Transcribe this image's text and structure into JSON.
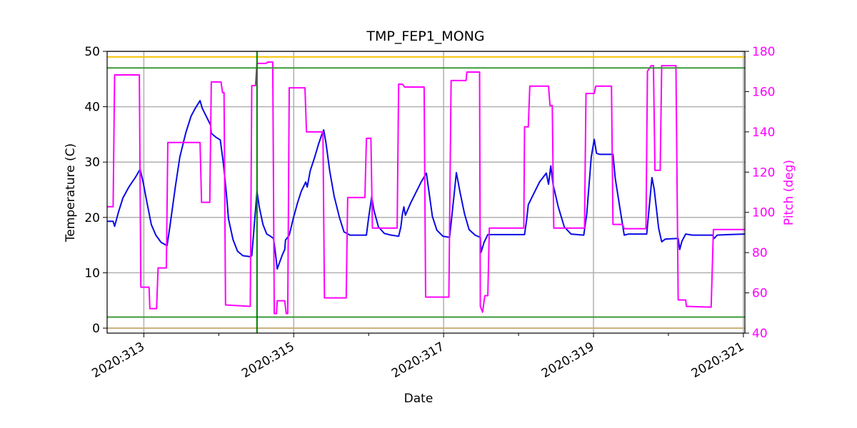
{
  "chart_data": {
    "type": "line",
    "title": "TMP_FEP1_MONG",
    "x_label": "Date",
    "y_label": "Temperature (C)",
    "y2_label": "Pitch (deg)",
    "xlim": [
      312.51,
      321.02
    ],
    "xticks": [
      {
        "value": 313,
        "label": "2020:313"
      },
      {
        "value": 315,
        "label": "2020:315"
      },
      {
        "value": 317,
        "label": "2020:317"
      },
      {
        "value": 319,
        "label": "2020:319"
      },
      {
        "value": 321,
        "label": "2020:321"
      }
    ],
    "xminorticks": [
      314,
      316,
      318,
      320
    ],
    "ylim": [
      -0.9,
      50
    ],
    "yticks": [
      0,
      10,
      20,
      30,
      40,
      50
    ],
    "y2lim": [
      40,
      180
    ],
    "y2ticks": [
      40,
      60,
      80,
      100,
      120,
      140,
      160,
      180
    ],
    "y2_color": "#ff00ff",
    "grid": true,
    "hlines": [
      {
        "value": 49,
        "color": "#f5c400"
      },
      {
        "value": 47,
        "color": "#3a9a3a"
      },
      {
        "value": 2,
        "color": "#3a9a3a"
      },
      {
        "value": 0,
        "color": "#c8b27c"
      }
    ],
    "vlines": [
      {
        "value": 314.51,
        "color": "#008000"
      }
    ],
    "series": [
      {
        "color": "#0a0ae6",
        "x": [
          312.51,
          312.59,
          312.61,
          312.66,
          312.72,
          312.8,
          312.89,
          312.95,
          312.99,
          313.04,
          313.1,
          313.16,
          313.23,
          313.31,
          313.35,
          313.42,
          313.48,
          313.56,
          313.63,
          313.69,
          313.75,
          313.78,
          313.85,
          313.89,
          313.9,
          313.96,
          314.02,
          314.06,
          314.1,
          314.13,
          314.19,
          314.25,
          314.32,
          314.42,
          314.44,
          314.47,
          314.51,
          314.54,
          314.59,
          314.64,
          314.69,
          314.73,
          314.75,
          314.78,
          314.82,
          314.85,
          314.88,
          314.89,
          314.94,
          314.99,
          315.05,
          315.1,
          315.16,
          315.18,
          315.22,
          315.28,
          315.33,
          315.37,
          315.4,
          315.43,
          315.48,
          315.54,
          315.61,
          315.67,
          315.75,
          315.97,
          316.0,
          316.04,
          316.07,
          316.13,
          316.21,
          316.3,
          316.4,
          316.43,
          316.45,
          316.47,
          316.49,
          316.56,
          316.63,
          316.7,
          316.77,
          316.8,
          316.85,
          316.91,
          316.99,
          317.08,
          317.14,
          317.17,
          317.22,
          317.28,
          317.34,
          317.42,
          317.49,
          317.5,
          317.54,
          317.59,
          318.08,
          318.11,
          318.13,
          318.21,
          318.28,
          318.37,
          318.4,
          318.43,
          318.46,
          318.53,
          318.61,
          318.7,
          318.87,
          318.91,
          318.97,
          319.01,
          319.04,
          319.08,
          319.26,
          319.29,
          319.35,
          319.41,
          319.47,
          319.71,
          319.75,
          319.78,
          319.81,
          319.87,
          319.91,
          319.96,
          320.13,
          320.15,
          320.18,
          320.23,
          320.32,
          320.59,
          320.61,
          320.65,
          320.8,
          321.02
        ],
        "values": [
          19.3,
          19.3,
          18.4,
          20.9,
          23.5,
          25.5,
          27.3,
          28.7,
          26.4,
          22.8,
          18.7,
          16.8,
          15.5,
          14.9,
          18.6,
          25.5,
          30.9,
          35.3,
          38.3,
          39.8,
          41.1,
          39.7,
          37.8,
          36.7,
          35.2,
          34.5,
          34.0,
          29.9,
          24.5,
          19.7,
          16.0,
          13.9,
          13.1,
          12.9,
          13.1,
          18.0,
          24.7,
          21.9,
          18.7,
          17.0,
          16.6,
          16.2,
          14.2,
          10.7,
          12.2,
          13.3,
          14.2,
          15.9,
          16.8,
          19.6,
          22.6,
          24.7,
          26.4,
          25.5,
          28.4,
          30.9,
          33.2,
          34.8,
          35.8,
          33.5,
          28.4,
          23.8,
          20.0,
          17.4,
          16.8,
          16.8,
          20.0,
          23.7,
          21.3,
          18.3,
          17.1,
          16.8,
          16.6,
          18.3,
          20.6,
          21.9,
          20.4,
          22.6,
          24.5,
          26.4,
          28.0,
          25.1,
          20.2,
          17.7,
          16.6,
          16.4,
          24.1,
          28.1,
          24.5,
          20.6,
          17.8,
          16.8,
          16.4,
          13.7,
          15.5,
          16.9,
          16.9,
          19.8,
          22.3,
          24.5,
          26.4,
          28.0,
          26.0,
          29.3,
          26.0,
          21.9,
          18.3,
          17.0,
          16.8,
          20.6,
          30.9,
          34.1,
          31.6,
          31.4,
          31.4,
          27.1,
          21.9,
          16.8,
          17.0,
          17.0,
          22.8,
          27.2,
          25.1,
          18.0,
          15.6,
          16.1,
          16.2,
          14.2,
          15.7,
          17.0,
          16.8,
          16.8,
          16.2,
          16.8,
          16.9,
          17.0
        ]
      },
      {
        "color": "#ff00ff",
        "axis": "y2",
        "x": [
          312.51,
          312.59,
          312.61,
          312.94,
          312.96,
          313.07,
          313.08,
          313.17,
          313.19,
          313.3,
          313.32,
          313.75,
          313.77,
          313.88,
          313.9,
          314.03,
          314.05,
          314.07,
          314.09,
          314.42,
          314.44,
          314.49,
          314.51,
          314.63,
          314.65,
          314.72,
          314.74,
          314.77,
          314.78,
          314.88,
          314.9,
          314.92,
          314.94,
          315.15,
          315.17,
          315.39,
          315.41,
          315.7,
          315.72,
          315.95,
          315.97,
          316.03,
          316.05,
          316.38,
          316.4,
          316.45,
          316.48,
          316.74,
          316.76,
          317.07,
          317.1,
          317.3,
          317.31,
          317.48,
          317.49,
          317.52,
          317.55,
          317.59,
          317.61,
          318.07,
          318.08,
          318.13,
          318.15,
          318.4,
          318.42,
          318.45,
          318.47,
          318.88,
          318.9,
          319.01,
          319.03,
          319.24,
          319.26,
          319.39,
          319.41,
          319.7,
          319.72,
          319.77,
          319.8,
          319.82,
          319.89,
          319.91,
          320.1,
          320.13,
          320.23,
          320.24,
          320.57,
          320.6,
          321.02
        ],
        "values": [
          102.8,
          102.8,
          168.3,
          168.3,
          62.8,
          62.8,
          52.2,
          52.2,
          72.4,
          72.4,
          134.7,
          134.7,
          105.0,
          105.0,
          164.8,
          164.8,
          159.5,
          159.5,
          54.0,
          53.3,
          163.0,
          163.0,
          174.0,
          174.0,
          174.7,
          174.7,
          49.7,
          49.7,
          56.1,
          56.1,
          49.7,
          49.7,
          161.9,
          161.9,
          140.0,
          140.0,
          57.5,
          57.5,
          107.4,
          107.4,
          136.8,
          136.8,
          92.2,
          92.2,
          163.7,
          163.7,
          162.3,
          162.3,
          57.9,
          57.9,
          165.5,
          165.5,
          169.7,
          169.7,
          53.3,
          50.4,
          58.6,
          58.6,
          92.2,
          92.2,
          142.5,
          142.5,
          162.7,
          162.7,
          153.1,
          153.1,
          92.2,
          92.2,
          159.1,
          159.1,
          162.7,
          162.7,
          94.0,
          94.0,
          91.9,
          91.9,
          170.1,
          172.9,
          172.9,
          120.9,
          120.9,
          172.9,
          172.9,
          56.5,
          56.5,
          53.3,
          52.9,
          91.5,
          91.5
        ]
      }
    ]
  }
}
